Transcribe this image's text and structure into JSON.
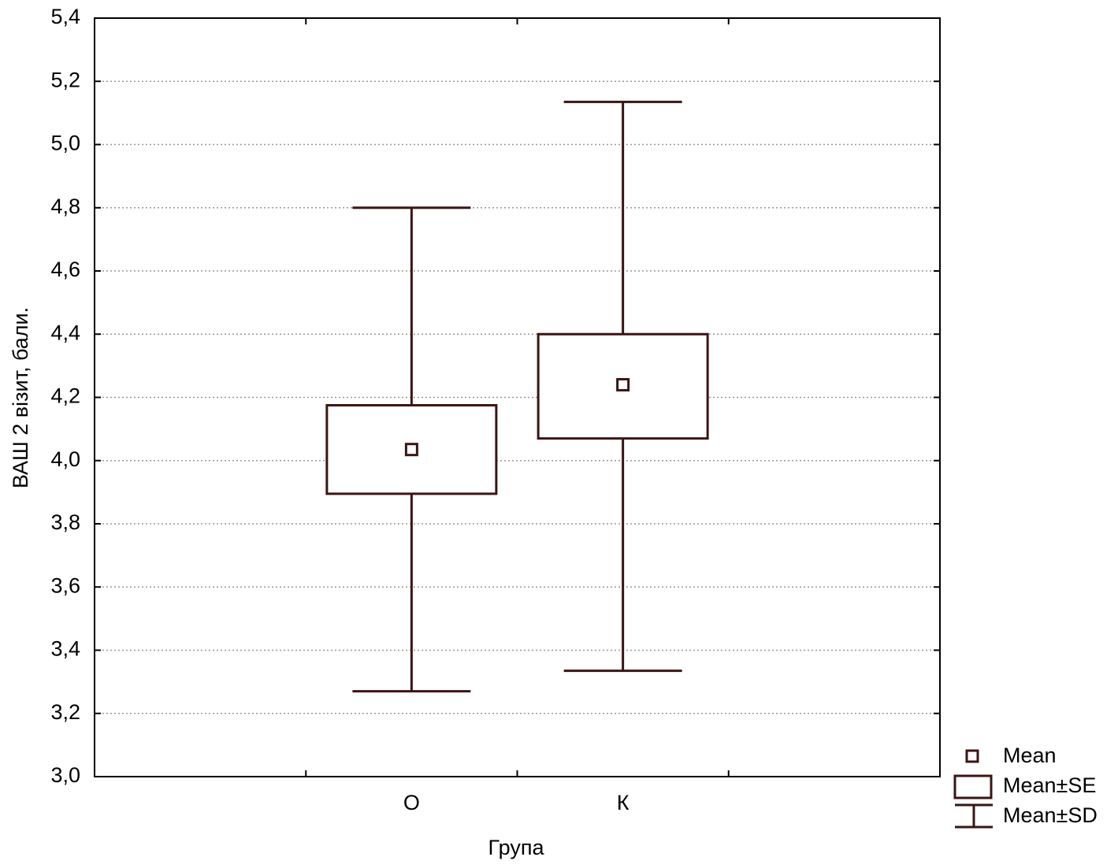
{
  "chart_data": {
    "type": "box",
    "y_label": "ВАШ 2 візит, бали.",
    "x_label": "Група",
    "categories": [
      "О",
      "К"
    ],
    "mean": [
      4.035,
      4.24
    ],
    "se_lower": [
      3.895,
      4.07
    ],
    "se_upper": [
      4.175,
      4.4
    ],
    "sd_lower": [
      3.27,
      3.335
    ],
    "sd_upper": [
      4.8,
      5.135
    ],
    "legend": [
      "Mean",
      "Mean±SE",
      "Mean±SD"
    ],
    "color": "#3b1414",
    "ylim": [
      3.0,
      5.4
    ],
    "yticks": [
      {
        "value": 3.0,
        "label": "3,0"
      },
      {
        "value": 3.2,
        "label": "3,2"
      },
      {
        "value": 3.4,
        "label": "3,4"
      },
      {
        "value": 3.6,
        "label": "3,6"
      },
      {
        "value": 3.8,
        "label": "3,8"
      },
      {
        "value": 4.0,
        "label": "4,0"
      },
      {
        "value": 4.2,
        "label": "4,2"
      },
      {
        "value": 4.4,
        "label": "4,4"
      },
      {
        "value": 4.6,
        "label": "4,6"
      },
      {
        "value": 4.8,
        "label": "4,8"
      },
      {
        "value": 5.0,
        "label": "5,0"
      },
      {
        "value": 5.2,
        "label": "5,2"
      },
      {
        "value": 5.4,
        "label": "5,4"
      }
    ],
    "grid": true
  }
}
